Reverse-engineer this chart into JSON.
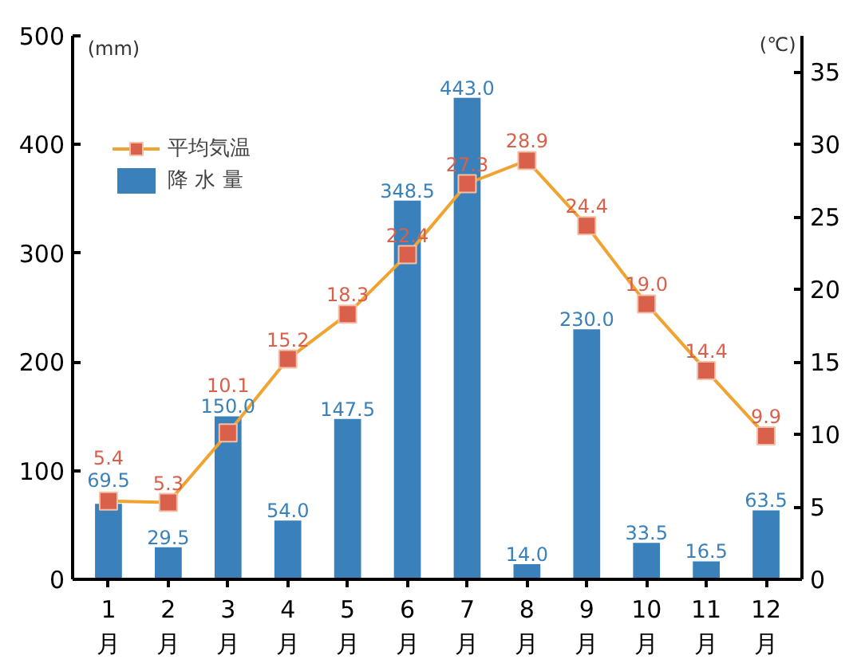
{
  "chart_data": {
    "type": "bar",
    "categories": [
      "1月",
      "2月",
      "3月",
      "4月",
      "5月",
      "6月",
      "7月",
      "8月",
      "9月",
      "10月",
      "11月",
      "12月"
    ],
    "ylabel": "(mm)",
    "y2label": "(℃)",
    "series": [
      {
        "name": "平均気温",
        "type": "line",
        "axis": "y2",
        "color": "#f0a330",
        "colors": [
          "#d9604a",
          "#d9604a",
          "#d9604a",
          "#d9604a",
          "#d9604a",
          "#d9604a",
          "#d9604a",
          "#d9604a",
          "#d9604a",
          "#d9604a",
          "#d9604a",
          "#d9604a"
        ],
        "values": [
          5.4,
          5.3,
          10.1,
          15.2,
          18.3,
          22.4,
          27.3,
          28.9,
          24.4,
          19.0,
          14.4,
          9.9
        ],
        "value_labels": [
          "5.4",
          "5.3",
          "10.1",
          "15.2",
          "18.3",
          "22.4",
          "27.3",
          "28.9",
          "24.4",
          "19.0",
          "14.4",
          "9.9"
        ]
      },
      {
        "name": "降 水 量",
        "color": "#3a80ba",
        "values": [
          69.5,
          29.5,
          150.0,
          54.0,
          147.5,
          348.5,
          443.0,
          14.0,
          230.0,
          33.5,
          16.5,
          63.5
        ],
        "value_labels": [
          "69.5",
          "29.5",
          "150.0",
          "54.0",
          "147.5",
          "348.5",
          "443.0",
          "14.0",
          "230.0",
          "33.5",
          "16.5",
          "63.5"
        ]
      }
    ],
    "ylim": [
      0,
      500
    ],
    "yticks": [
      0,
      100,
      200,
      300,
      400,
      500
    ],
    "y2lim": [
      0,
      37.5
    ],
    "y2ticks": [
      0,
      5,
      10,
      15,
      20,
      25,
      30,
      35
    ],
    "marker": "square",
    "grid": false,
    "legend": "top left"
  }
}
